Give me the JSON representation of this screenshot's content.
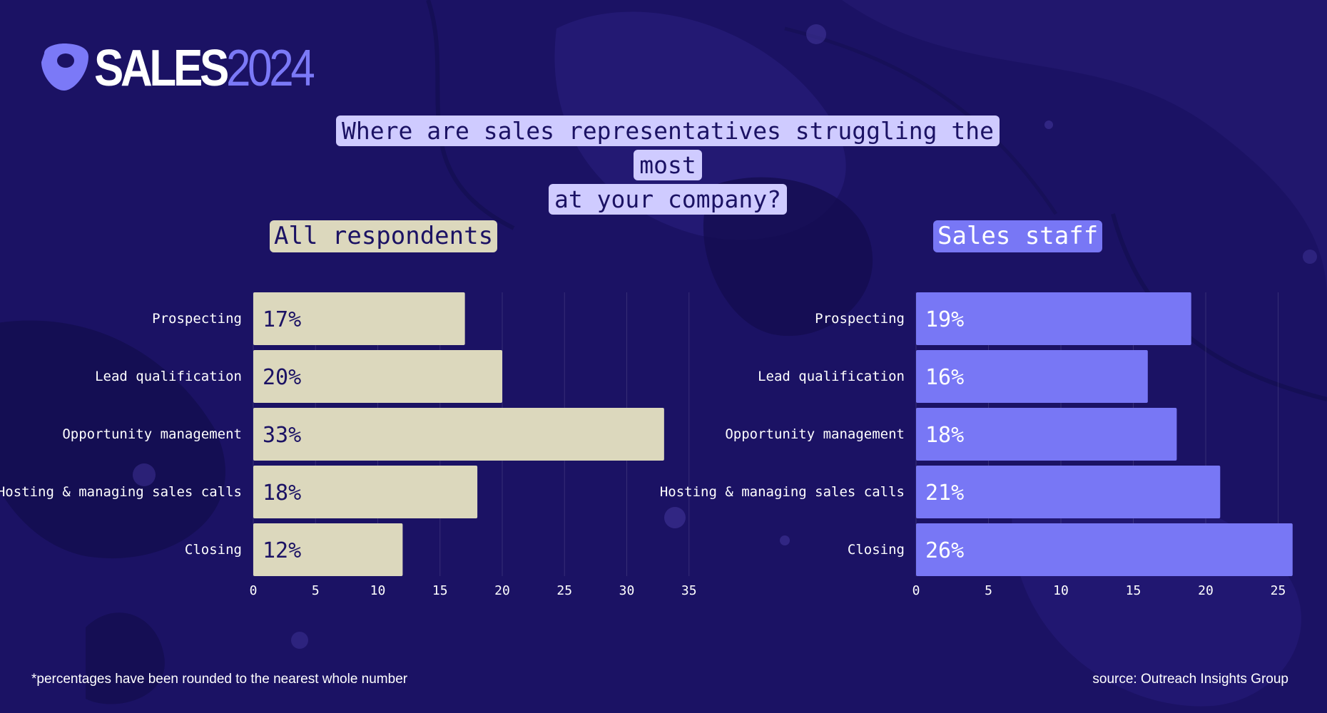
{
  "logo": {
    "word": "SALES",
    "year": "2024"
  },
  "title_lines": [
    "Where are sales representatives struggling the most",
    "at your company?"
  ],
  "colors": {
    "background": "#1b1264",
    "left_bars": "#dcd8bd",
    "right_bars": "#7877f5",
    "title_bg": "#cfcbff"
  },
  "chart_data": [
    {
      "type": "bar",
      "orientation": "horizontal",
      "title": "All respondents",
      "categories": [
        "Prospecting",
        "Lead qualification",
        "Opportunity management",
        "Hosting & managing sales calls",
        "Closing"
      ],
      "values": [
        17,
        20,
        33,
        18,
        12
      ],
      "data_labels": [
        "17%",
        "20%",
        "33%",
        "18%",
        "12%"
      ],
      "xlim": [
        0,
        35
      ],
      "xticks": [
        0,
        5,
        10,
        15,
        20,
        25,
        30,
        35
      ],
      "grid": true,
      "bar_color": "#dcd8bd",
      "label_color": "#1b1264"
    },
    {
      "type": "bar",
      "orientation": "horizontal",
      "title": "Sales staff",
      "categories": [
        "Prospecting",
        "Lead qualification",
        "Opportunity management",
        "Hosting & managing sales calls",
        "Closing"
      ],
      "values": [
        19,
        16,
        18,
        21,
        26
      ],
      "data_labels": [
        "19%",
        "16%",
        "18%",
        "21%",
        "26%"
      ],
      "xlim": [
        0,
        26
      ],
      "xticks": [
        0,
        5,
        10,
        15,
        20,
        25
      ],
      "grid": true,
      "bar_color": "#7877f5",
      "label_color": "#ffffff"
    }
  ],
  "footnote": "*percentages have been rounded to the nearest whole number",
  "source": "source: Outreach Insights Group"
}
